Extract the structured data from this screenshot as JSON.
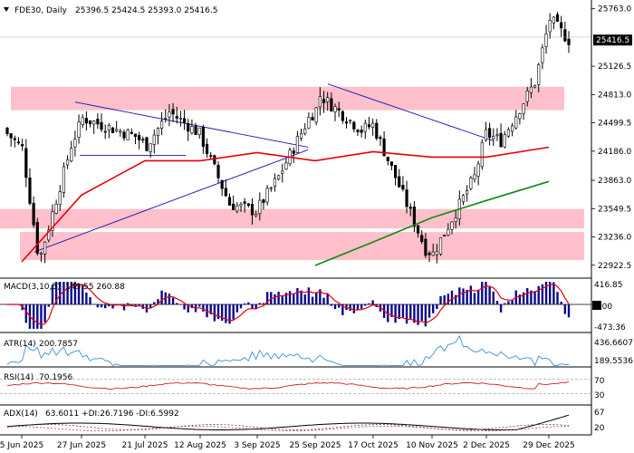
{
  "header": {
    "symbol": "FDE30,",
    "timeframe": "Daily",
    "ohlc": "25396.5 25424.5 25393.0 25416.5"
  },
  "colors": {
    "candle": "#000000",
    "zone": "#ffc0cb",
    "ma_fast": "#e8000b",
    "ma_slow": "#118b11",
    "trendline": "#1414b4",
    "macd_hist": "#0a0a8c",
    "macd_signal": "#e8000b",
    "atr": "#3c8fd8",
    "rsi": "#d21e1e",
    "adx": "#000000",
    "di_plus": "#333333",
    "di_minus": "#d21e1e",
    "last_price_bg": "#000000"
  },
  "chart_data": [
    {
      "type": "candlestick",
      "title": "FDE30, Daily",
      "last_price": "25416.5",
      "y_ticks": [
        "25763.0",
        "25126.5",
        "24813.0",
        "24499.5",
        "24186.0",
        "23863.0",
        "23549.5",
        "23236.0",
        "22922.5"
      ],
      "ylim": [
        22880,
        25800
      ],
      "x_ticks": [
        "5 Jun 2025",
        "27 Jun 2025",
        "21 Jul 2025",
        "12 Aug 2025",
        "3 Sep 2025",
        "25 Sep 2025",
        "17 Oct 2025",
        "10 Nov 2025",
        "2 Dec 2025",
        "29 Dec 2025"
      ],
      "closes_by_x_tick": [
        24220,
        24550,
        24250,
        24380,
        23520,
        24650,
        24480,
        23050,
        24380,
        25416.5
      ],
      "resistance_zone": [
        24640,
        24900
      ],
      "support_zones": [
        [
          23330,
          23545
        ],
        [
          22980,
          23290
        ]
      ],
      "ma_fast_by_x_tick": [
        22960,
        23700,
        24080,
        24080,
        24170,
        24080,
        24180,
        24120,
        24120,
        24230
      ],
      "ma_slow_by_x_tick": [
        null,
        null,
        null,
        null,
        null,
        22920,
        23180,
        23450,
        23640,
        23850
      ]
    },
    {
      "type": "histogram",
      "title": "MACD(3,10,5)",
      "values_text": "149.55 260.88",
      "y_ticks": [
        "416.85",
        "0.00",
        "-473.36"
      ],
      "ylim": [
        -560,
        520
      ]
    },
    {
      "type": "line",
      "title": "ATR(14)",
      "values_text": "200.7857",
      "y_ticks": [
        "436.6607",
        "189.5536"
      ],
      "ylim": [
        160,
        470
      ]
    },
    {
      "type": "line",
      "title": "RSI(14)",
      "values_text": "70.1956",
      "y_ticks": [
        "70",
        "30"
      ],
      "ylim": [
        0,
        100
      ]
    },
    {
      "type": "line",
      "title": "ADX(14)",
      "values_text": "63.6011 +DI:26.7196 -DI:6.5992",
      "y_ticks": [
        "67",
        "20"
      ],
      "ylim": [
        0,
        80
      ]
    }
  ]
}
